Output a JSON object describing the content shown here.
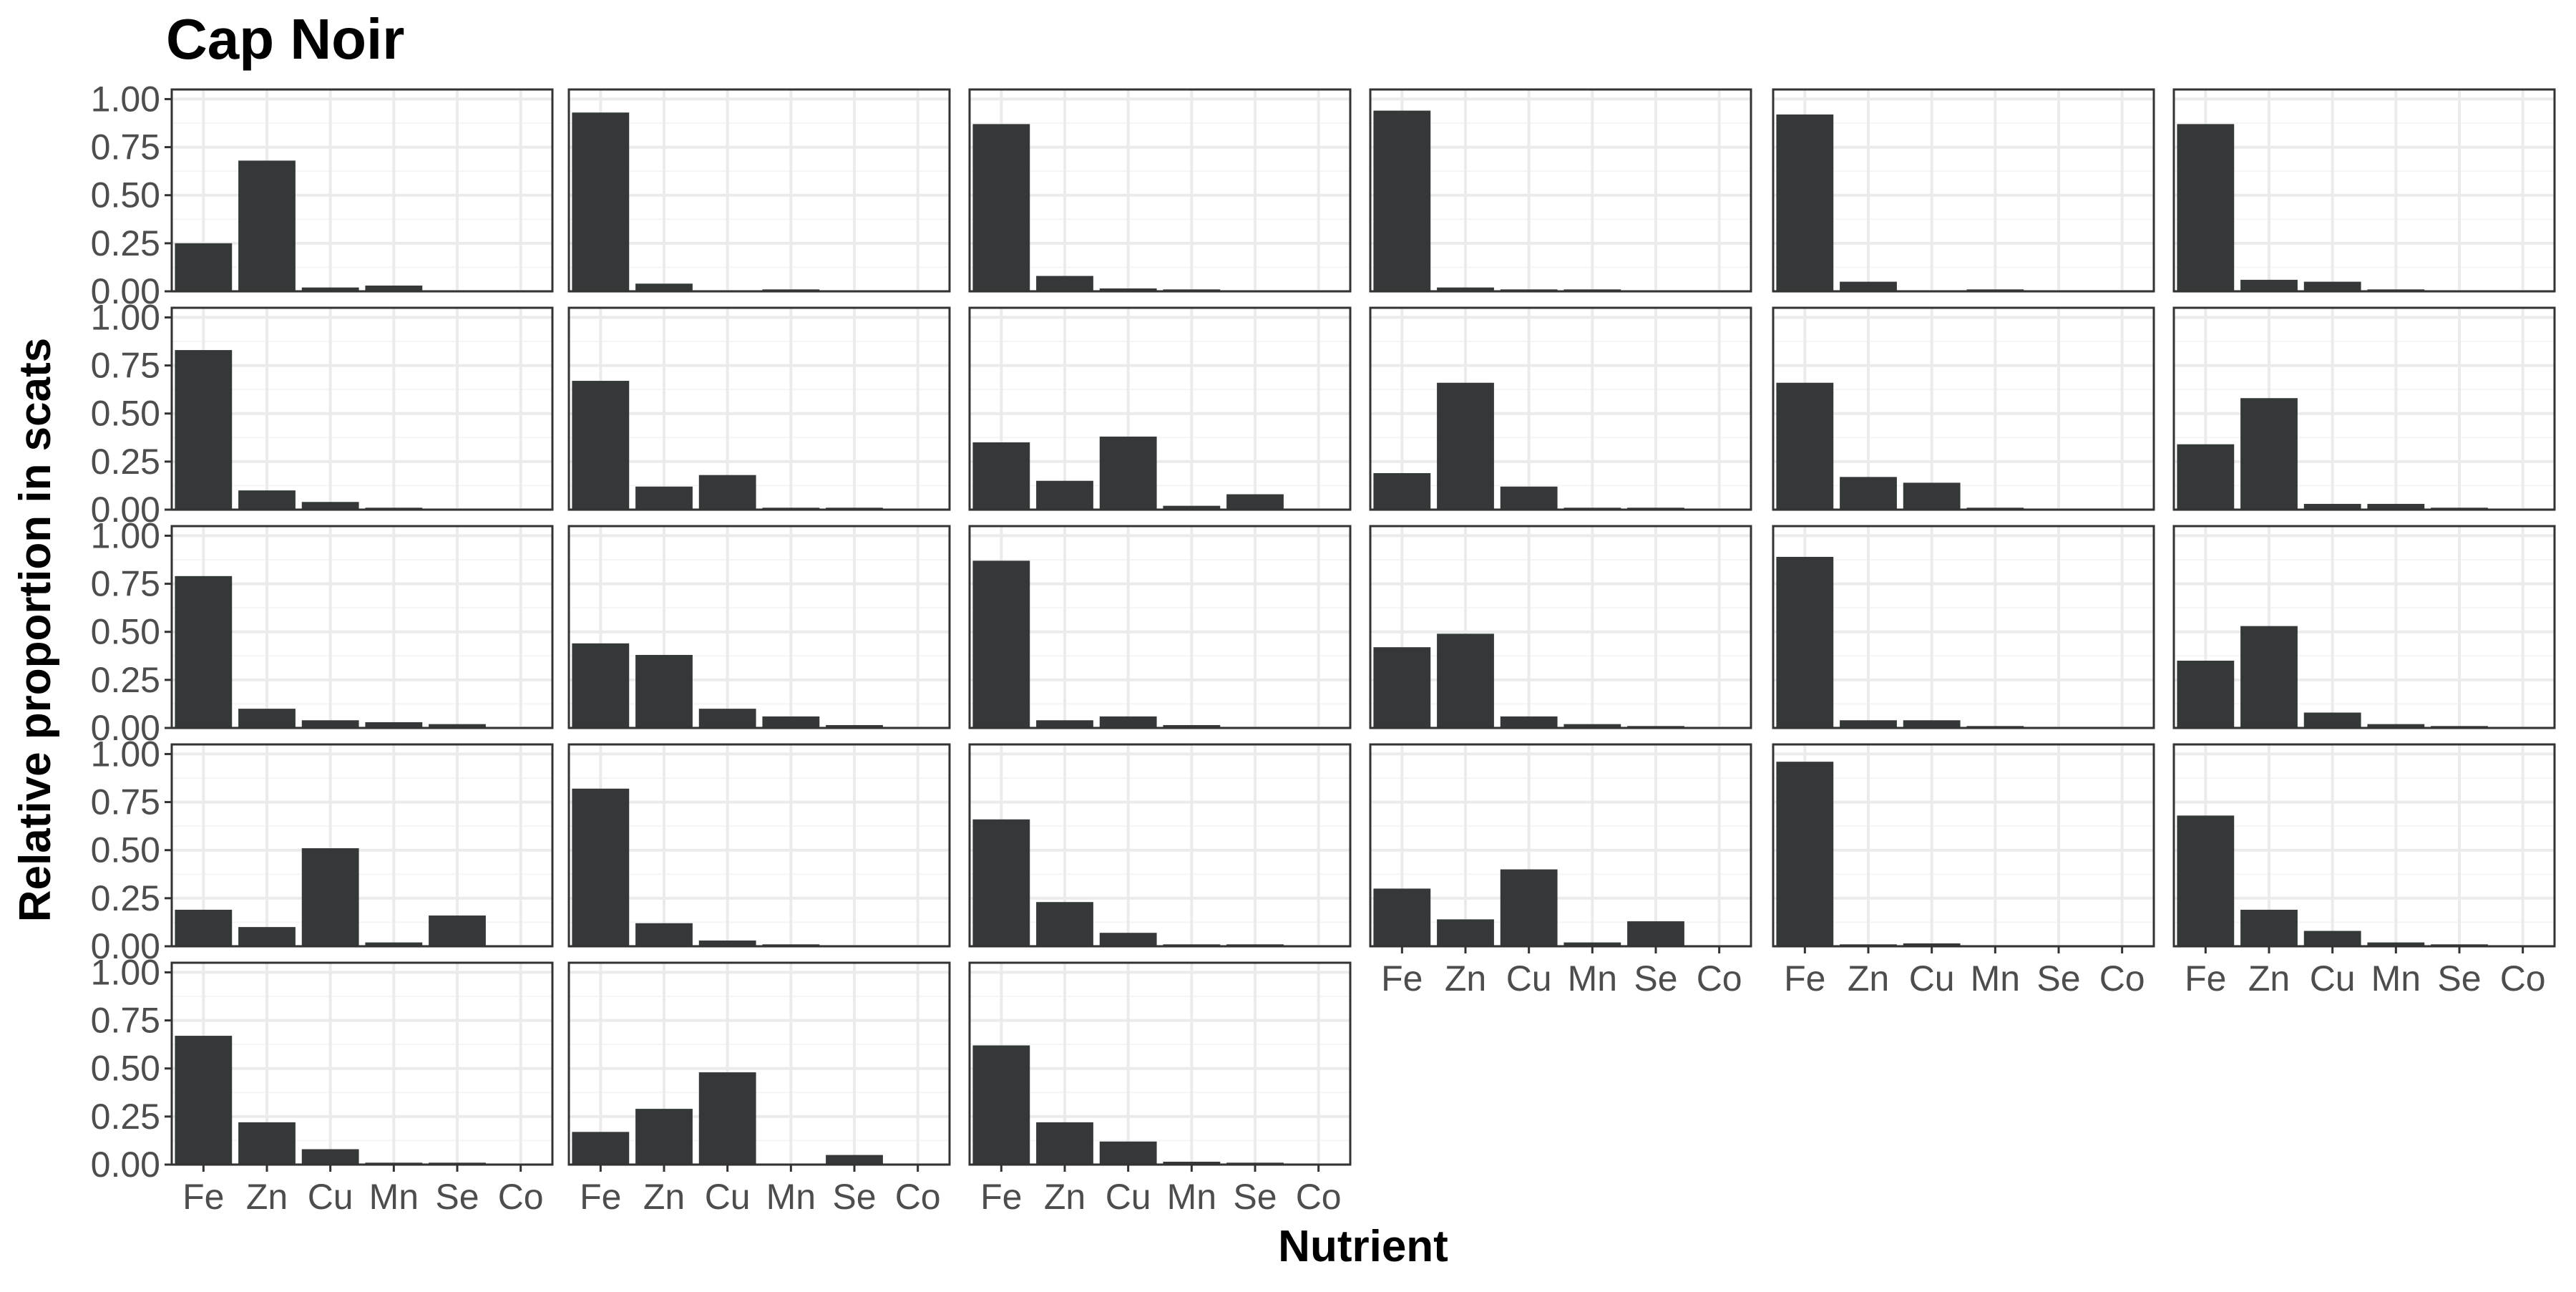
{
  "chart_data": {
    "type": "bar",
    "title": "Cap Noir",
    "xlabel": "Nutrient",
    "ylabel": "Relative proportion in scats",
    "categories": [
      "Fe",
      "Zn",
      "Cu",
      "Mn",
      "Se",
      "Co"
    ],
    "y_ticks": [
      "0.00",
      "0.25",
      "0.50",
      "0.75",
      "1.00"
    ],
    "ylim": [
      0,
      1.05
    ],
    "grid": true,
    "bar_color": "#343839",
    "grid_color": "#ebebeb",
    "panel_border_color": "#333333",
    "layout": {
      "columns": 6,
      "rows": 5,
      "panels": 27
    },
    "panels": [
      {
        "values": [
          0.25,
          0.68,
          0.02,
          0.03,
          0.005,
          0
        ]
      },
      {
        "values": [
          0.93,
          0.04,
          0.005,
          0.01,
          0,
          0
        ]
      },
      {
        "values": [
          0.87,
          0.08,
          0.015,
          0.01,
          0.005,
          0
        ]
      },
      {
        "values": [
          0.94,
          0.02,
          0.01,
          0.01,
          0.005,
          0
        ]
      },
      {
        "values": [
          0.92,
          0.05,
          0.005,
          0.01,
          0,
          0
        ]
      },
      {
        "values": [
          0.87,
          0.06,
          0.05,
          0.01,
          0.005,
          0
        ]
      },
      {
        "values": [
          0.83,
          0.1,
          0.04,
          0.01,
          0.005,
          0
        ]
      },
      {
        "values": [
          0.67,
          0.12,
          0.18,
          0.01,
          0.01,
          0
        ]
      },
      {
        "values": [
          0.35,
          0.15,
          0.38,
          0.02,
          0.08,
          0
        ]
      },
      {
        "values": [
          0.19,
          0.66,
          0.12,
          0.01,
          0.01,
          0
        ]
      },
      {
        "values": [
          0.66,
          0.17,
          0.14,
          0.01,
          0.005,
          0
        ]
      },
      {
        "values": [
          0.34,
          0.58,
          0.03,
          0.03,
          0.01,
          0
        ]
      },
      {
        "values": [
          0.79,
          0.1,
          0.04,
          0.03,
          0.02,
          0
        ]
      },
      {
        "values": [
          0.44,
          0.38,
          0.1,
          0.06,
          0.015,
          0
        ]
      },
      {
        "values": [
          0.87,
          0.04,
          0.06,
          0.015,
          0.005,
          0
        ]
      },
      {
        "values": [
          0.42,
          0.49,
          0.06,
          0.02,
          0.01,
          0
        ]
      },
      {
        "values": [
          0.89,
          0.04,
          0.04,
          0.01,
          0.005,
          0
        ]
      },
      {
        "values": [
          0.35,
          0.53,
          0.08,
          0.02,
          0.01,
          0
        ]
      },
      {
        "values": [
          0.19,
          0.1,
          0.51,
          0.02,
          0.16,
          0
        ]
      },
      {
        "values": [
          0.82,
          0.12,
          0.03,
          0.01,
          0.005,
          0
        ]
      },
      {
        "values": [
          0.66,
          0.23,
          0.07,
          0.01,
          0.01,
          0
        ]
      },
      {
        "values": [
          0.3,
          0.14,
          0.4,
          0.02,
          0.13,
          0
        ]
      },
      {
        "values": [
          0.96,
          0.01,
          0.015,
          0.005,
          0,
          0
        ]
      },
      {
        "values": [
          0.68,
          0.19,
          0.08,
          0.02,
          0.01,
          0
        ]
      },
      {
        "values": [
          0.67,
          0.22,
          0.08,
          0.01,
          0.01,
          0
        ]
      },
      {
        "values": [
          0.17,
          0.29,
          0.48,
          0.005,
          0.05,
          0
        ]
      },
      {
        "values": [
          0.62,
          0.22,
          0.12,
          0.015,
          0.01,
          0
        ]
      }
    ]
  }
}
